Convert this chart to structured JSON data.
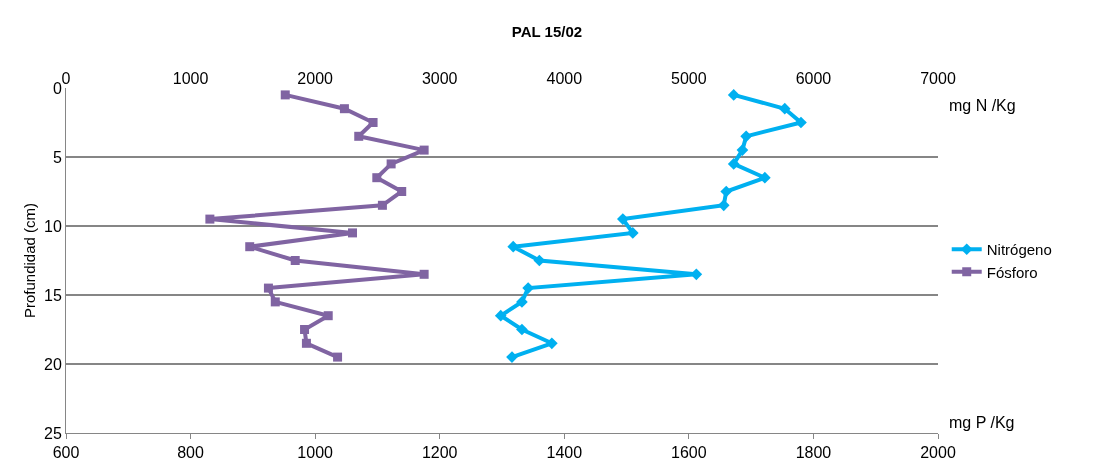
{
  "chart_data": {
    "type": "line",
    "title": "PAL 15/02",
    "ylabel": "Profundidad (cm)",
    "xlabel": "mg P /Kg",
    "x2label": "mg N /Kg",
    "series": [
      {
        "name": "Nitrógeno",
        "color": "#00b0f0",
        "axis": "x2",
        "marker": "diamond",
        "x": [
          5360,
          5770,
          5900,
          5460,
          5430,
          5360,
          5610,
          5300,
          5280,
          4470,
          4550,
          3590,
          3800,
          5060,
          3710,
          3660,
          3490,
          3660,
          3900,
          3580
        ],
        "values": [
          0.5,
          1.5,
          2.5,
          3.5,
          4.5,
          5.5,
          6.5,
          7.5,
          8.5,
          9.5,
          10.5,
          11.5,
          12.5,
          13.5,
          14.5,
          15.5,
          16.5,
          17.5,
          18.5,
          19.5
        ]
      },
      {
        "name": "Fósforo",
        "color": "#8064a2",
        "marker": "square",
        "x": [
          952,
          1047,
          1093,
          1070,
          1175,
          1122,
          1099,
          1139,
          1108,
          831,
          1060,
          895,
          968,
          1175,
          925,
          936,
          1021,
          983,
          986,
          1036
        ],
        "values": [
          0.5,
          1.5,
          2.5,
          3.5,
          4.5,
          5.5,
          6.5,
          7.5,
          8.5,
          9.5,
          10.5,
          11.5,
          12.5,
          13.5,
          14.5,
          15.5,
          16.5,
          17.5,
          18.5,
          19.5
        ]
      }
    ],
    "xlim": [
      600,
      2000
    ],
    "xticks": [
      600,
      800,
      1000,
      1200,
      1400,
      1600,
      1800,
      2000
    ],
    "x2lim": [
      0,
      7000
    ],
    "x2ticks": [
      0,
      1000,
      2000,
      3000,
      4000,
      5000,
      6000,
      7000
    ],
    "ylim": [
      25,
      0
    ],
    "yticks": [
      0,
      5,
      10,
      15,
      20,
      25
    ],
    "grid": "y",
    "legend": "right",
    "line_style": "solid"
  }
}
